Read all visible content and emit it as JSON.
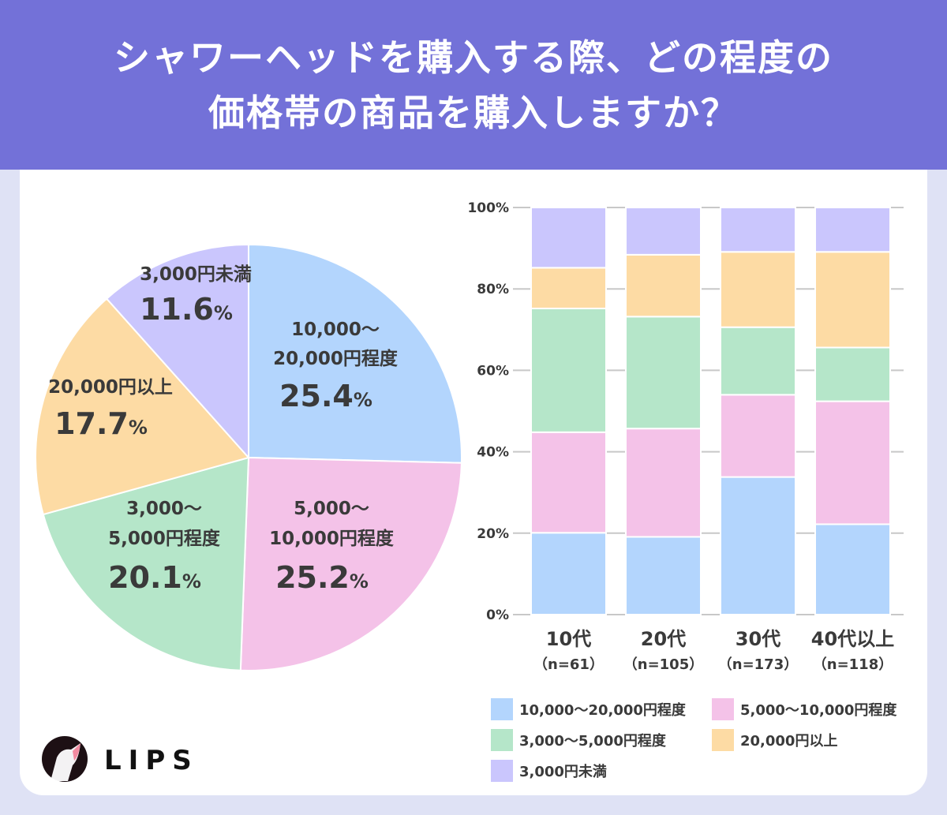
{
  "header": {
    "title_line1": "シャワーヘッドを購入する際、どの程度の",
    "title_line2": "価格帯の商品を購入しますか？"
  },
  "logo": {
    "text": "LIPS"
  },
  "colors": {
    "10000-20000": "#b3d5fd",
    "5000-10000": "#f4c2e8",
    "3000-5000": "#b5e6c9",
    "20000+": "#fddba4",
    "under3000": "#cac6fd",
    "header": "#7371d8"
  },
  "chart_data": [
    {
      "type": "pie",
      "slices": [
        {
          "label_lines": [
            "10,000～",
            "20,000円程度"
          ],
          "value": 25.4,
          "value_label": "25.4",
          "color": "#b3d5fd"
        },
        {
          "label_lines": [
            "5,000～",
            "10,000円程度"
          ],
          "value": 25.2,
          "value_label": "25.2",
          "color": "#f4c2e8"
        },
        {
          "label_lines": [
            "3,000～",
            "5,000円程度"
          ],
          "value": 20.1,
          "value_label": "20.1",
          "color": "#b5e6c9"
        },
        {
          "label_lines": [
            "20,000円以上"
          ],
          "value": 17.7,
          "value_label": "17.7",
          "color": "#fddba4"
        },
        {
          "label_lines": [
            "3,000円未満"
          ],
          "value": 11.6,
          "value_label": "11.6",
          "color": "#cac6fd"
        }
      ],
      "unit": "%",
      "start": "top",
      "direction": "clockwise"
    },
    {
      "type": "bar",
      "stacked": true,
      "categories": [
        "10代",
        "20代",
        "30代",
        "40代以上"
      ],
      "category_sublabels": [
        "（n=61）",
        "（n=105）",
        "（n=173）",
        "（n=118）"
      ],
      "ylim": [
        0,
        100
      ],
      "yticks": [
        "0%",
        "20%",
        "40%",
        "60%",
        "80%",
        "100%"
      ],
      "grid": true,
      "series": [
        {
          "name": "10,000～20,000円程度",
          "color": "#b3d5fd",
          "values": [
            20.1,
            19.1,
            33.8,
            22.2
          ]
        },
        {
          "name": "5,000～10,000円程度",
          "color": "#f4c2e8",
          "values": [
            24.7,
            26.6,
            20.2,
            30.2
          ]
        },
        {
          "name": "3,000～5,000円程度",
          "color": "#b5e6c9",
          "values": [
            30.4,
            27.5,
            16.6,
            13.2
          ]
        },
        {
          "name": "20,000円以上",
          "color": "#fddba4",
          "values": [
            10.0,
            15.2,
            18.5,
            23.5
          ]
        },
        {
          "name": "3,000円未満",
          "color": "#cac6fd",
          "values": [
            14.8,
            11.6,
            10.9,
            10.9
          ]
        }
      ],
      "legend": "bottom"
    }
  ]
}
